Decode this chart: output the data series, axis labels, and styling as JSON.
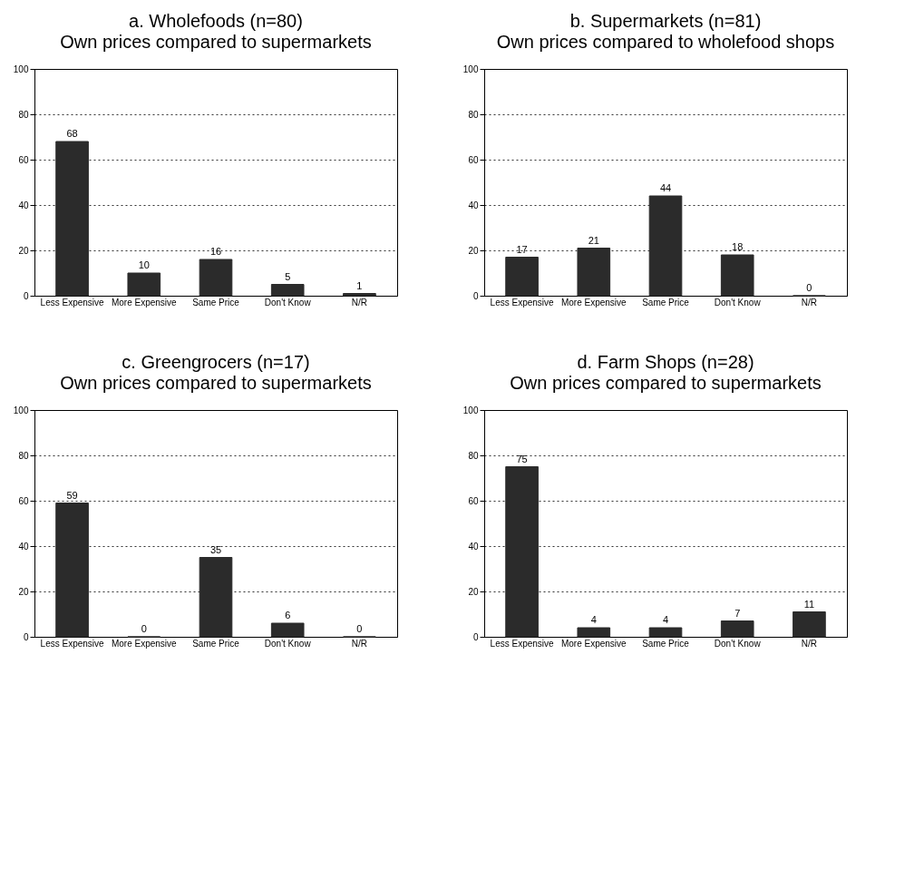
{
  "chart_data": [
    {
      "type": "bar",
      "title": "a. Wholefoods (n=80)",
      "subtitle": "Own prices compared to supermarkets",
      "categories": [
        "Less Expensive",
        "More Expensive",
        "Same Price",
        "Don't Know",
        "N/R"
      ],
      "values": [
        68,
        10,
        16,
        5,
        1
      ],
      "color": "#2b2b2b",
      "ylim": [
        0,
        100
      ],
      "yticks": [
        0,
        20,
        40,
        60,
        80,
        100
      ],
      "grid": "y",
      "data_labels": true
    },
    {
      "type": "bar",
      "title": "b. Supermarkets (n=81)",
      "subtitle": "Own prices compared to wholefood shops",
      "categories": [
        "Less Expensive",
        "More Expensive",
        "Same Price",
        "Don't Know",
        "N/R"
      ],
      "values": [
        17,
        21,
        44,
        18,
        0
      ],
      "color": "#2b2b2b",
      "ylim": [
        0,
        100
      ],
      "yticks": [
        0,
        20,
        40,
        60,
        80,
        100
      ],
      "grid": "y",
      "data_labels": true
    },
    {
      "type": "bar",
      "title": "c. Greengrocers (n=17)",
      "subtitle": "Own prices compared to supermarkets",
      "categories": [
        "Less Expensive",
        "More Expensive",
        "Same Price",
        "Don't Know",
        "N/R"
      ],
      "values": [
        59,
        0,
        35,
        6,
        0
      ],
      "color": "#2b2b2b",
      "ylim": [
        0,
        100
      ],
      "yticks": [
        0,
        20,
        40,
        60,
        80,
        100
      ],
      "grid": "y",
      "data_labels": true
    },
    {
      "type": "bar",
      "title": "d. Farm Shops (n=28)",
      "subtitle": "Own prices compared to supermarkets",
      "categories": [
        "Less Expensive",
        "More Expensive",
        "Same Price",
        "Don't Know",
        "N/R"
      ],
      "values": [
        75,
        4,
        4,
        7,
        11
      ],
      "color": "#2b2b2b",
      "ylim": [
        0,
        100
      ],
      "yticks": [
        0,
        20,
        40,
        60,
        80,
        100
      ],
      "grid": "y",
      "data_labels": true
    }
  ]
}
